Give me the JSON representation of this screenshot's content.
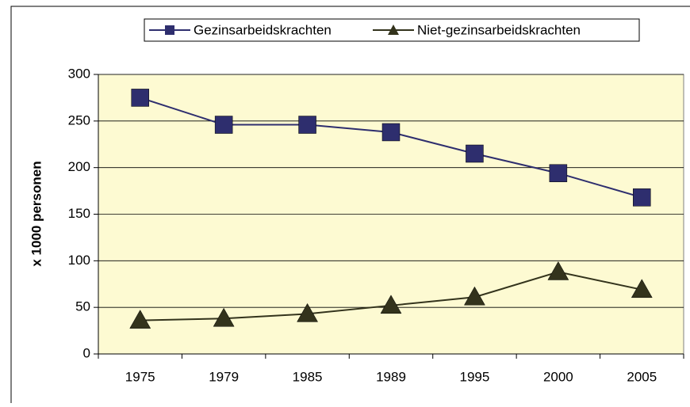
{
  "chart_data": {
    "type": "line",
    "categories": [
      "1975",
      "1979",
      "1985",
      "1989",
      "1995",
      "2000",
      "2005"
    ],
    "series": [
      {
        "name": "Gezinsarbeidskrachten",
        "color": "#2e2e6e",
        "marker": "square",
        "values": [
          275,
          246,
          246,
          238,
          215,
          194,
          168
        ]
      },
      {
        "name": "Niet-gezinsarbeidskrachten",
        "color": "#33331c",
        "marker": "triangle",
        "values": [
          36,
          38,
          43,
          52,
          61,
          88,
          69
        ]
      }
    ],
    "ylabel": "x 1000 personen",
    "ylim": [
      0,
      300
    ],
    "yticks": [
      0,
      50,
      100,
      150,
      200,
      250,
      300
    ],
    "grid": true,
    "legend": "top",
    "background": "#fdfad2"
  }
}
